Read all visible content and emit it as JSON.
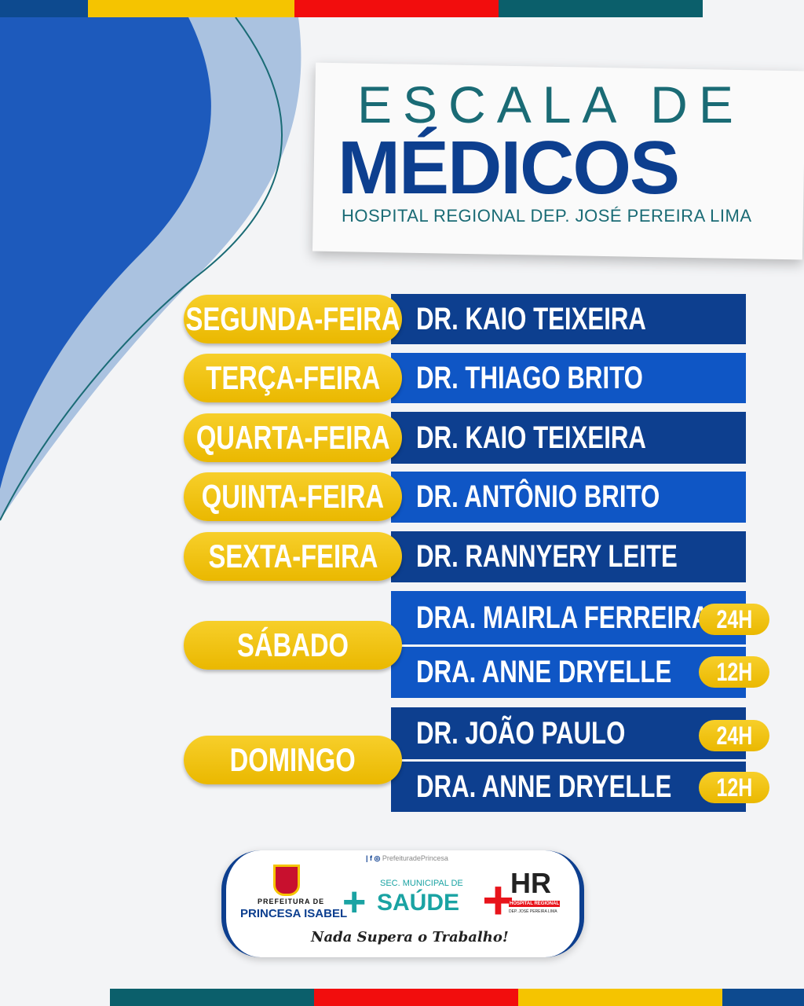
{
  "header": {
    "line1": "ESCALA DE",
    "line2": "MÉDICOS",
    "subtitle": "HOSPITAL REGIONAL DEP. JOSÉ PEREIRA LIMA"
  },
  "schedule": [
    {
      "day": "SEGUNDA-FEIRA",
      "doctors": [
        {
          "name": "DR. KAIO TEIXEIRA"
        }
      ]
    },
    {
      "day": "TERÇA-FEIRA",
      "doctors": [
        {
          "name": "DR. THIAGO BRITO"
        }
      ]
    },
    {
      "day": "QUARTA-FEIRA",
      "doctors": [
        {
          "name": "DR. KAIO TEIXEIRA"
        }
      ]
    },
    {
      "day": "QUINTA-FEIRA",
      "doctors": [
        {
          "name": "DR. ANTÔNIO BRITO"
        }
      ]
    },
    {
      "day": "SEXTA-FEIRA",
      "doctors": [
        {
          "name": "DR. RANNYERY LEITE"
        }
      ]
    },
    {
      "day": "SÁBADO",
      "doctors": [
        {
          "name": "DRA. MAIRLA FERREIRA",
          "hours": "24H"
        },
        {
          "name": "DRA. ANNE DRYELLE",
          "hours": "12H"
        }
      ]
    },
    {
      "day": "DOMINGO",
      "doctors": [
        {
          "name": "DR. JOÃO PAULO",
          "hours": "24H"
        },
        {
          "name": "DRA. ANNE DRYELLE",
          "hours": "12H"
        }
      ]
    }
  ],
  "footer": {
    "social": "PrefeituradePrincesa",
    "pref_small": "PREFEITURA DE",
    "pref_big": "PRINCESA ISABEL",
    "sec_small": "SEC. MUNICIPAL DE",
    "sec_big": "SAÚDE",
    "hr_logo": "HR",
    "hr_sub1": "HOSPITAL REGIONAL",
    "hr_sub2": "DEP. JOSÉ PEREIRA LIMA",
    "slogan": "Nada Supera o Trabalho!"
  },
  "colors": {
    "dark_blue": "#0d3f8f",
    "blue": "#0f56c5",
    "yellow": "#f5c400",
    "red": "#e8141b",
    "teal": "#0b5f6b"
  }
}
